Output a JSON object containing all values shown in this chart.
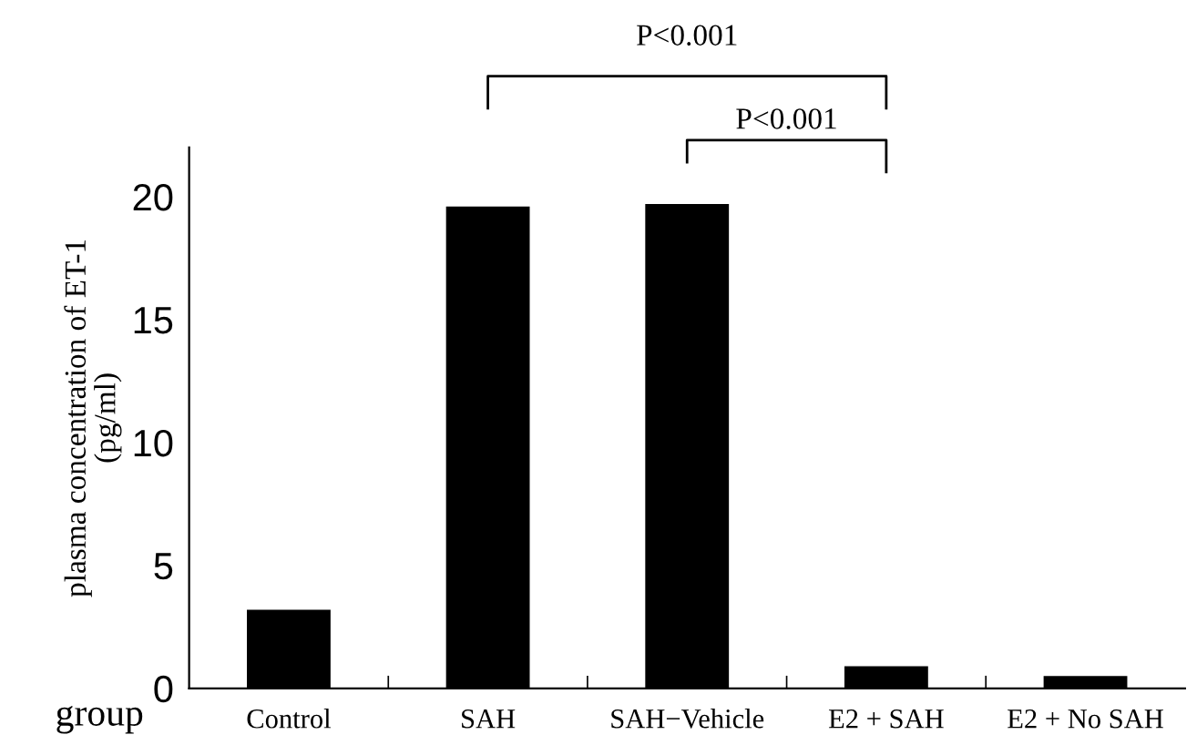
{
  "chart_data": {
    "type": "bar",
    "xlabel": "group",
    "ylabel": "plasma concentration of ET-1\n(pg/ml)",
    "categories": [
      "Control",
      "SAH",
      "SAH−Vehicle",
      "E2 + SAH",
      "E2 + No SAH"
    ],
    "values": [
      3.2,
      19.6,
      19.7,
      0.9,
      0.5
    ],
    "color": "#000000",
    "ylim": [
      0,
      22
    ],
    "yticks": [
      0,
      5,
      10,
      15,
      20
    ],
    "grid": false,
    "legend": false,
    "annotations": [
      "P<0.001",
      "P<0.001"
    ]
  }
}
